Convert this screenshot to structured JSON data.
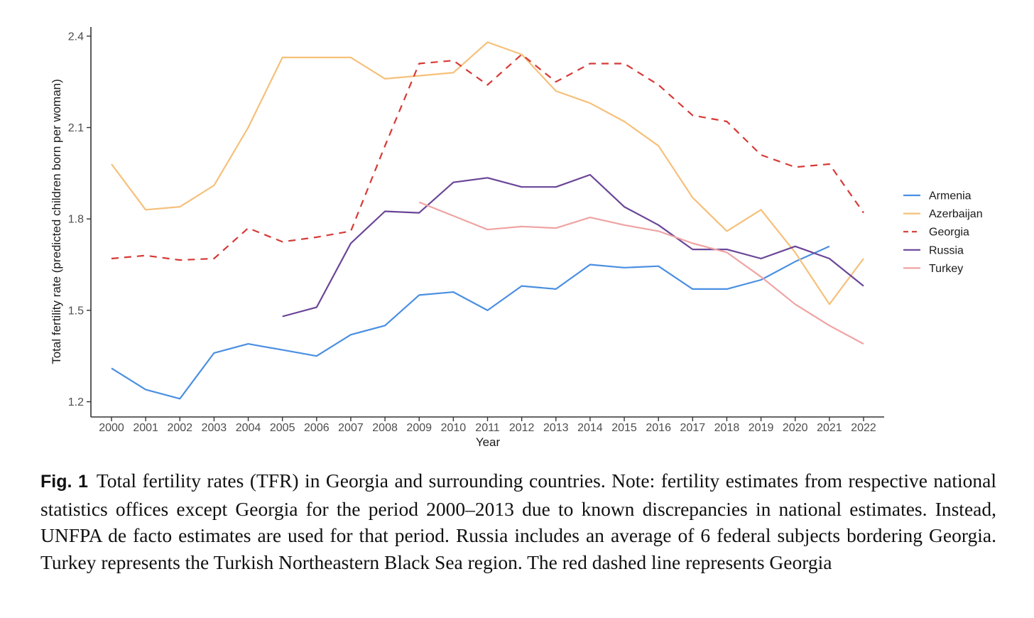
{
  "chart_data": {
    "type": "line",
    "title": "",
    "xlabel": "Year",
    "ylabel": "Total fertility rate (predicted children born per woman)",
    "x": [
      2000,
      2001,
      2002,
      2003,
      2004,
      2005,
      2006,
      2007,
      2008,
      2009,
      2010,
      2011,
      2012,
      2013,
      2014,
      2015,
      2016,
      2017,
      2018,
      2019,
      2020,
      2021,
      2022
    ],
    "ylim": [
      1.15,
      2.43
    ],
    "yticks": [
      1.2,
      1.5,
      1.8,
      2.1,
      2.4
    ],
    "ytick_labels": [
      "1.2",
      "1.5",
      "1.8",
      "2.1",
      "2.4"
    ],
    "xtick_labels": [
      "2000",
      "2001",
      "2002",
      "2003",
      "2004",
      "2005",
      "2006",
      "2007",
      "2008",
      "2009",
      "2010",
      "2011",
      "2012",
      "2013",
      "2014",
      "2015",
      "2016",
      "2017",
      "2018",
      "2019",
      "2020",
      "2021",
      "2022"
    ],
    "grid": false,
    "legend_position": "right",
    "series": [
      {
        "name": "Armenia",
        "color": "#4a8fe2",
        "dash": "solid",
        "values": [
          1.31,
          1.24,
          1.21,
          1.36,
          1.39,
          1.37,
          1.35,
          1.42,
          1.45,
          1.55,
          1.56,
          1.5,
          1.58,
          1.57,
          1.65,
          1.64,
          1.645,
          1.57,
          1.57,
          1.6,
          1.66,
          1.71,
          null
        ]
      },
      {
        "name": "Azerbaijan",
        "color": "#f6c07a",
        "dash": "solid",
        "values": [
          1.98,
          1.83,
          1.84,
          1.91,
          2.1,
          2.33,
          2.33,
          2.33,
          2.26,
          2.27,
          2.28,
          2.38,
          2.34,
          2.22,
          2.18,
          2.12,
          2.04,
          1.87,
          1.76,
          1.83,
          1.69,
          1.52,
          1.67
        ]
      },
      {
        "name": "Georgia",
        "color": "#d63a36",
        "dash": "dashed",
        "values": [
          1.67,
          1.68,
          1.665,
          1.67,
          1.77,
          1.725,
          1.74,
          1.76,
          2.04,
          2.31,
          2.32,
          2.24,
          2.34,
          2.25,
          2.31,
          2.31,
          2.24,
          2.14,
          2.12,
          2.01,
          1.97,
          1.98,
          1.82
        ]
      },
      {
        "name": "Russia",
        "color": "#6a4597",
        "dash": "solid",
        "values": [
          null,
          null,
          null,
          null,
          null,
          1.48,
          1.51,
          1.72,
          1.825,
          1.82,
          1.92,
          1.935,
          1.905,
          1.905,
          1.945,
          1.84,
          1.78,
          1.7,
          1.7,
          1.67,
          1.71,
          1.67,
          1.58
        ]
      },
      {
        "name": "Turkey",
        "color": "#f0a3a3",
        "dash": "solid",
        "values": [
          null,
          null,
          null,
          null,
          null,
          null,
          null,
          null,
          null,
          1.855,
          1.81,
          1.765,
          1.775,
          1.77,
          1.805,
          1.78,
          1.76,
          1.72,
          1.69,
          1.61,
          1.52,
          1.45,
          1.39
        ]
      }
    ]
  },
  "caption": {
    "label": "Fig. 1",
    "text": "Total fertility rates (TFR) in Georgia and surrounding countries. Note: fertility estimates from respective national statistics offices except Georgia for the period 2000–2013 due to known discrepancies in national estimates. Instead, UNFPA de facto estimates are used for that period. Russia includes an average of 6 federal subjects bordering Georgia. Turkey represents the Turkish Northeastern Black Sea region. The red dashed line represents Georgia"
  }
}
